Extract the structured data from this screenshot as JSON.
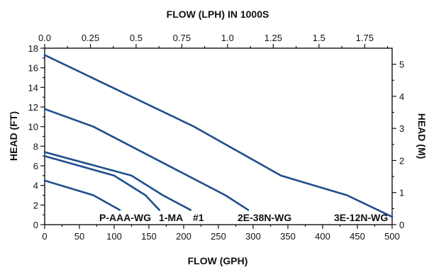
{
  "chart_data": {
    "type": "line",
    "title": "",
    "top_xlabel": "FLOW (LPH) IN 1000S",
    "xlabel": "FLOW (GPH)",
    "ylabel": "HEAD (FT)",
    "right_ylabel": "HEAD (M)",
    "xlim": [
      0,
      500
    ],
    "ylim": [
      0,
      18
    ],
    "top_xlim": [
      0,
      1.9
    ],
    "right_ylim": [
      0,
      5.5
    ],
    "x_ticks": [
      "0",
      "50",
      "100",
      "150",
      "200",
      "250",
      "300",
      "350",
      "400",
      "450",
      "500"
    ],
    "x_tick_values": [
      0,
      50,
      100,
      150,
      200,
      250,
      300,
      350,
      400,
      450,
      500
    ],
    "y_ticks": [
      "0",
      "2",
      "4",
      "6",
      "8",
      "10",
      "12",
      "14",
      "16",
      "18"
    ],
    "y_tick_values": [
      0,
      2,
      4,
      6,
      8,
      10,
      12,
      14,
      16,
      18
    ],
    "top_ticks": [
      "0.0",
      "0.25",
      "0.5",
      "0.75",
      "1.0",
      "1.25",
      "1.5",
      "1.75"
    ],
    "top_tick_values": [
      0,
      0.25,
      0.5,
      0.75,
      1.0,
      1.25,
      1.5,
      1.75
    ],
    "right_ticks": [
      "0",
      "1",
      "2",
      "3",
      "4",
      "5"
    ],
    "right_tick_values": [
      0,
      1,
      2,
      3,
      4,
      5
    ],
    "grid": false,
    "series": [
      {
        "name": "P-AAA-WG",
        "x": [
          0,
          70,
          108
        ],
        "y": [
          4.5,
          3.0,
          1.5
        ]
      },
      {
        "name": "1-MA",
        "x": [
          0,
          100,
          145,
          165
        ],
        "y": [
          7.0,
          5.0,
          3.0,
          1.5
        ]
      },
      {
        "name": "#1",
        "x": [
          0,
          125,
          170,
          210
        ],
        "y": [
          7.4,
          5.0,
          3.0,
          1.5
        ]
      },
      {
        "name": "2E-38N-WG",
        "x": [
          0,
          70,
          260,
          293
        ],
        "y": [
          11.8,
          10.0,
          3.0,
          1.5
        ]
      },
      {
        "name": "3E-12N-WG",
        "x": [
          0,
          215,
          340,
          435,
          500
        ],
        "y": [
          17.3,
          10.0,
          5.0,
          3.0,
          0.8
        ]
      }
    ],
    "color": "#1f4e8c"
  }
}
